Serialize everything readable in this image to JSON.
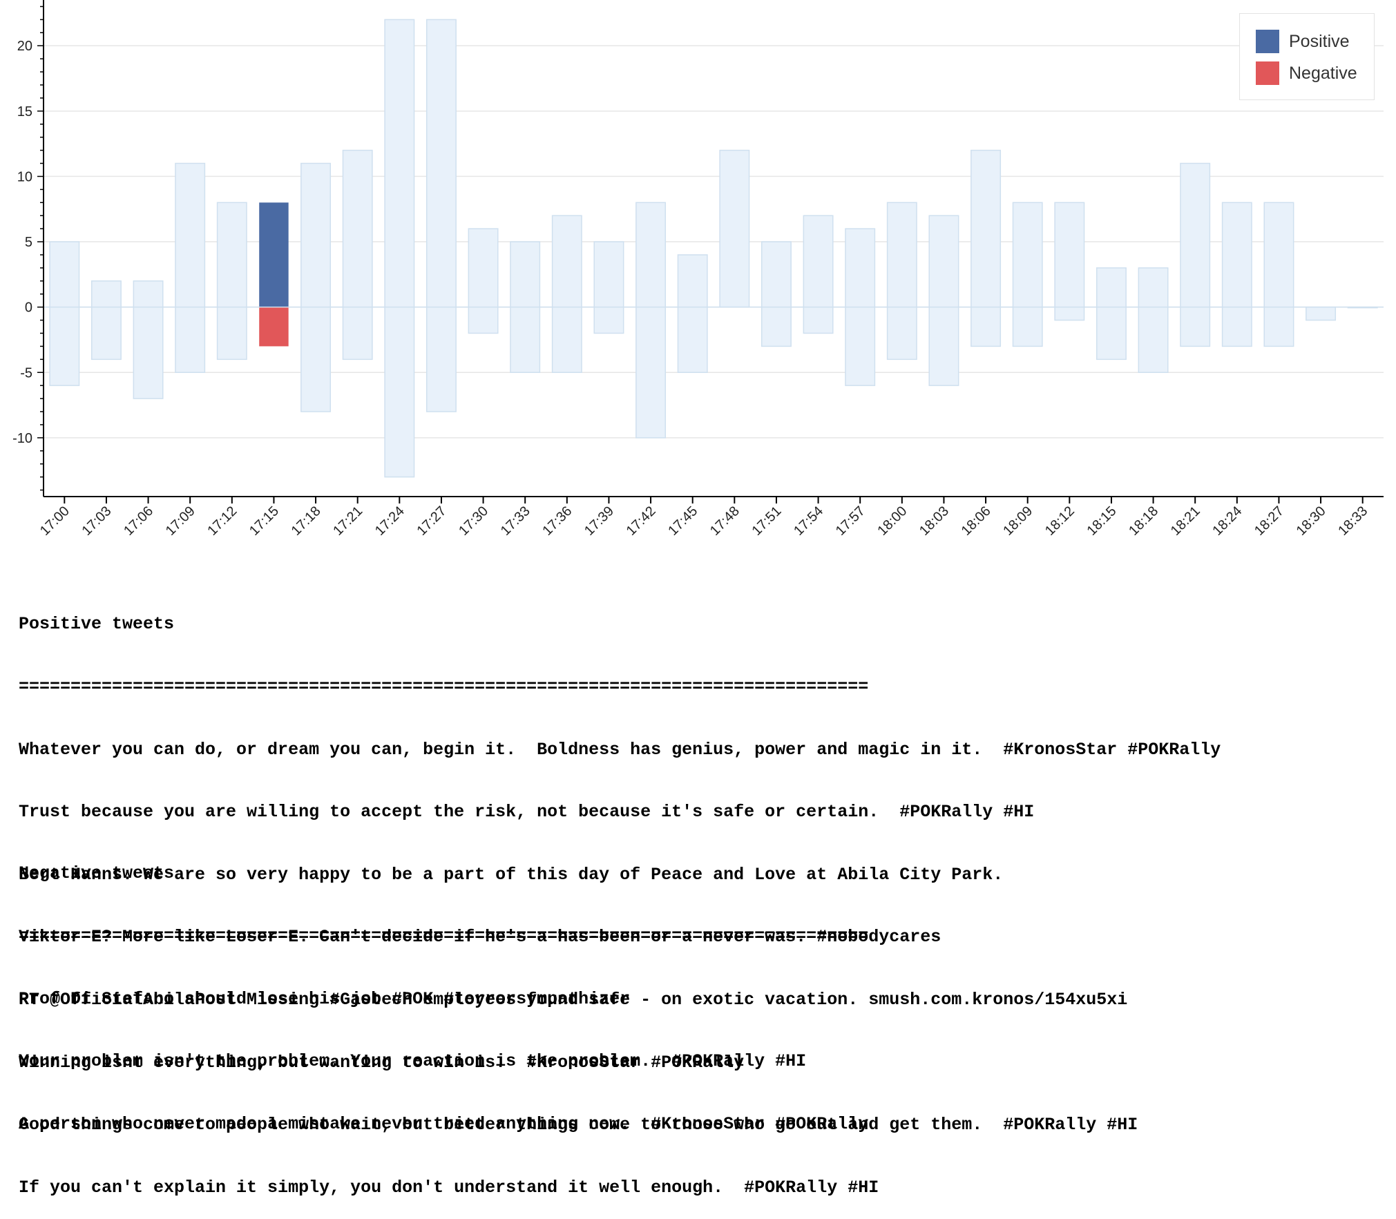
{
  "colors": {
    "positive": "#4a6aa3",
    "negative": "#e15759",
    "background_bar_fill": "#e8f1fa",
    "background_bar_stroke": "#cfe0ef",
    "grid": "#e6e6e6",
    "axis": "#000000"
  },
  "chart_data": {
    "type": "bar",
    "title": "",
    "xlabel": "",
    "ylabel": "",
    "ylim": [
      -14.5,
      23.5
    ],
    "yticks": [
      20,
      15,
      10,
      5,
      0,
      -5,
      -10
    ],
    "grid": true,
    "legend_position": "top-right",
    "categories": [
      "17:00",
      "17:03",
      "17:06",
      "17:09",
      "17:12",
      "17:15",
      "17:18",
      "17:21",
      "17:24",
      "17:27",
      "17:30",
      "17:33",
      "17:36",
      "17:39",
      "17:42",
      "17:45",
      "17:48",
      "17:51",
      "17:54",
      "17:57",
      "18:00",
      "18:03",
      "18:06",
      "18:09",
      "18:12",
      "18:15",
      "18:18",
      "18:21",
      "18:24",
      "18:27",
      "18:30",
      "18:33"
    ],
    "series": [
      {
        "name": "Positive",
        "values": [
          5,
          2,
          2,
          11,
          8,
          8,
          11,
          12,
          22,
          22,
          6,
          5,
          7,
          5,
          8,
          4,
          12,
          5,
          7,
          6,
          8,
          7,
          12,
          8,
          8,
          3,
          3,
          11,
          8,
          8,
          0,
          0
        ]
      },
      {
        "name": "Negative",
        "values": [
          -6,
          -4,
          -7,
          -5,
          -4,
          -3,
          -8,
          -4,
          -13,
          -8,
          -2,
          -5,
          -5,
          -2,
          -10,
          -5,
          0,
          -3,
          -2,
          -6,
          -4,
          -6,
          -3,
          -3,
          -1,
          -4,
          -5,
          -3,
          -3,
          -3,
          -1,
          0
        ]
      }
    ],
    "highlighted_category": "17:15"
  },
  "legend": {
    "items": [
      {
        "label": "Positive"
      },
      {
        "label": "Negative"
      }
    ]
  },
  "positive_tweets": {
    "heading": "Positive tweets",
    "rule": "==================================================================================",
    "lines": [
      "Whatever you can do, or dream you can, begin it.  Boldness has genius, power and magic in it.  #KronosStar #POKRally",
      "Trust because you are willing to accept the risk, not because it's safe or certain.  #POKRally #HI",
      "Bert Hanns: We are so very happy to be a part of this day of Peace and Love at Abila City Park.",
      "Viktor-E? More like Loser-E. Can't decide if he's a has-been or a never-was. #nobodycares",
      "RT @OfficialAbilaPost Missing #Gastech employees found safe - on exotic vacation. smush.com.kronos/154xu5xi",
      "Winning isnt everything, but wanting to win is.  #KronosStar #POKRally",
      "Good things come to people who wait, but better things come to those who go out and get them.  #POKRally #HI",
      "If you can't explain it simply, you don't understand it well enough.  #POKRally #HI"
    ]
  },
  "negative_tweets": {
    "heading": "Negative tweets",
    "rule": "==================================================================================",
    "lines": [
      "Prof Di Stefano should lose his job #POK #terrorsympathizer",
      "Your problem isn't the problem. Your reaction is the problem.  #POKRally #HI",
      "A person who never made a mistake never tried anything new.  #KronosStar #POKRally"
    ]
  }
}
